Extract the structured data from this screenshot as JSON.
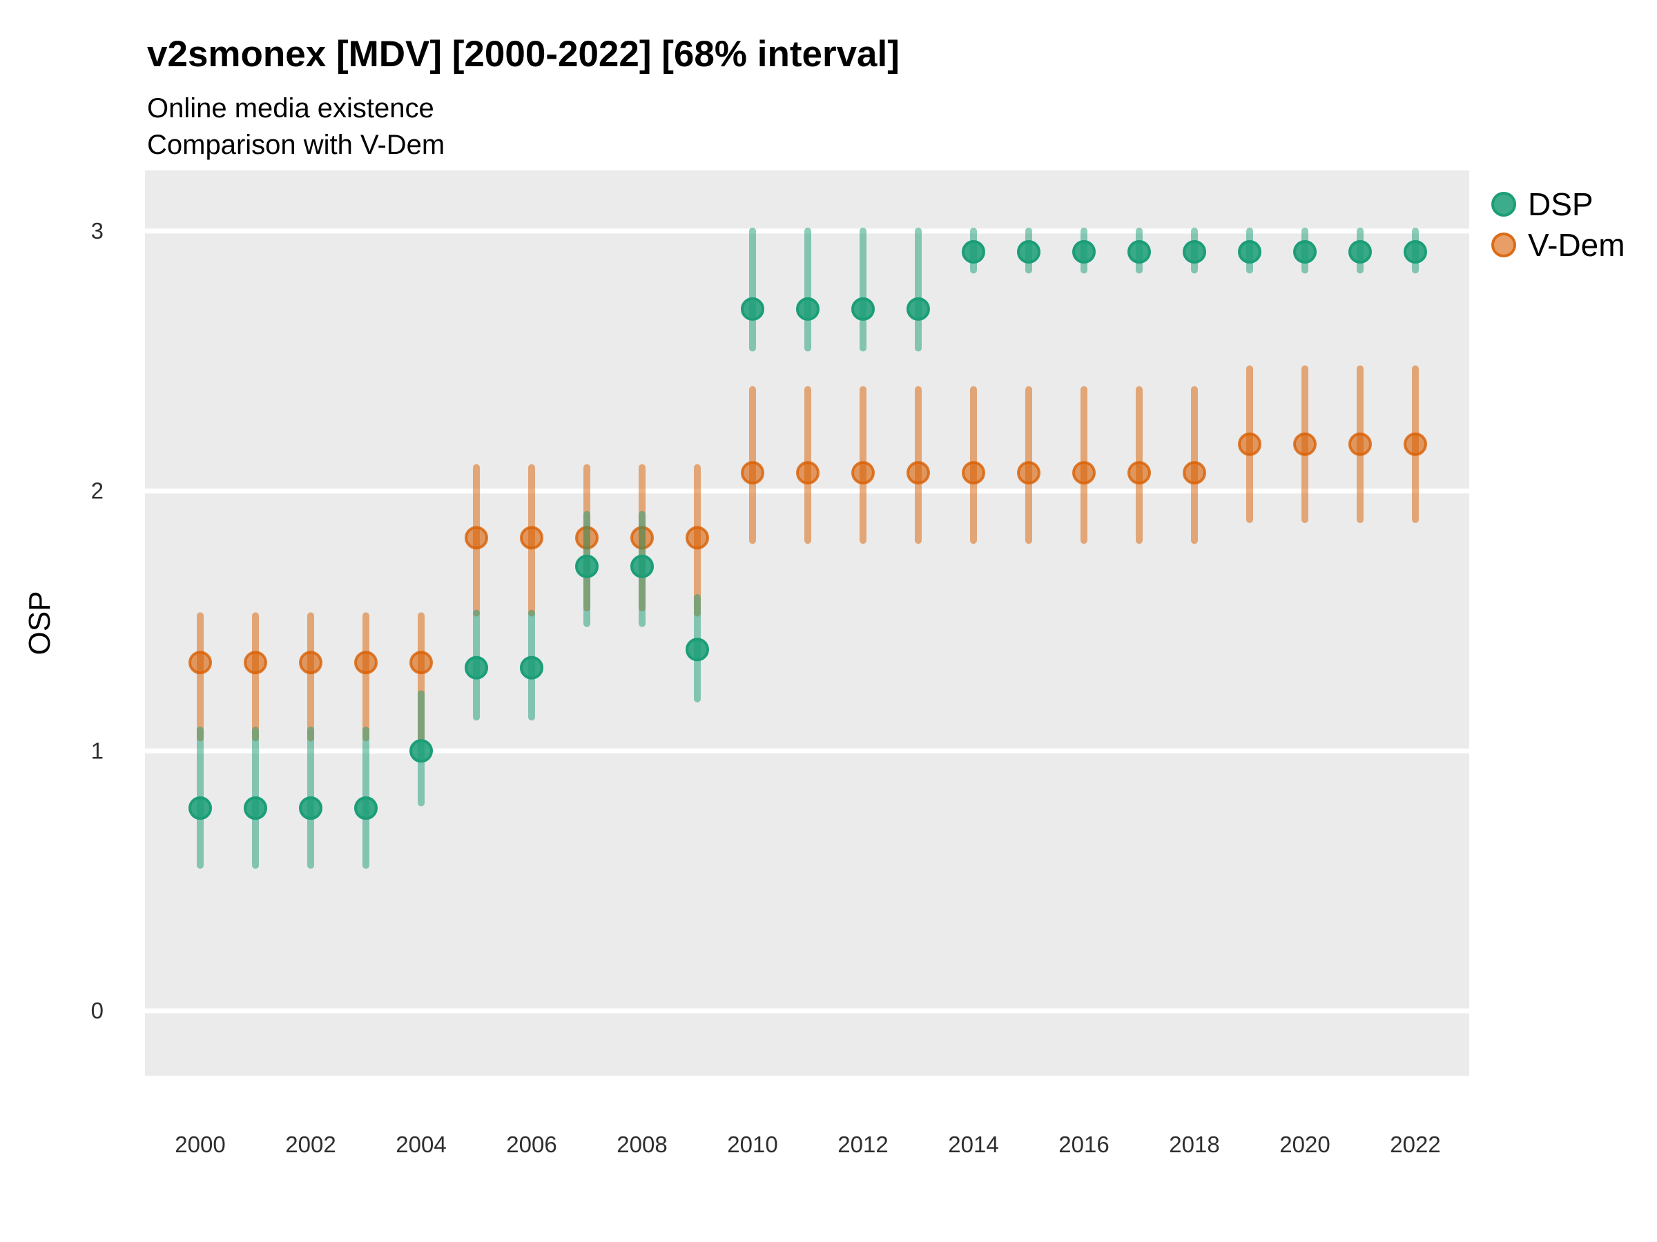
{
  "chart_data": {
    "type": "pointrange",
    "title": "v2smonex [MDV] [2000-2022] [68% interval]",
    "subtitle": [
      "Online media existence",
      "Comparison with V-Dem"
    ],
    "ylabel": "OSP",
    "xlabel": "",
    "interval_note": "68% interval",
    "legend_position": "right",
    "grid": true,
    "panel_bg": "#EBEBEB",
    "grid_color": "#FFFFFF",
    "y_ticks": [
      0,
      1,
      2,
      3
    ],
    "x_ticks": [
      2000,
      2002,
      2004,
      2006,
      2008,
      2010,
      2012,
      2014,
      2016,
      2018,
      2020,
      2022
    ],
    "ylim": [
      -0.25,
      3.23
    ],
    "xlim": [
      1999,
      2023
    ],
    "series": [
      {
        "name": "DSP",
        "color": "#1B9E77",
        "bar_color": "rgba(27,158,119,0.5)",
        "dot_fill": "rgba(27,158,119,0.85)",
        "dot_stroke": "rgba(27,158,119,1)",
        "points": [
          {
            "year": 2000,
            "mid": 0.78,
            "lo": 0.56,
            "hi": 1.08
          },
          {
            "year": 2001,
            "mid": 0.78,
            "lo": 0.56,
            "hi": 1.08
          },
          {
            "year": 2002,
            "mid": 0.78,
            "lo": 0.56,
            "hi": 1.08
          },
          {
            "year": 2003,
            "mid": 0.78,
            "lo": 0.56,
            "hi": 1.08
          },
          {
            "year": 2004,
            "mid": 1.0,
            "lo": 0.8,
            "hi": 1.22
          },
          {
            "year": 2005,
            "mid": 1.32,
            "lo": 1.13,
            "hi": 1.53
          },
          {
            "year": 2006,
            "mid": 1.32,
            "lo": 1.13,
            "hi": 1.53
          },
          {
            "year": 2007,
            "mid": 1.71,
            "lo": 1.49,
            "hi": 1.91
          },
          {
            "year": 2008,
            "mid": 1.71,
            "lo": 1.49,
            "hi": 1.91
          },
          {
            "year": 2009,
            "mid": 1.39,
            "lo": 1.2,
            "hi": 1.59
          },
          {
            "year": 2010,
            "mid": 2.7,
            "lo": 2.55,
            "hi": 3.0
          },
          {
            "year": 2011,
            "mid": 2.7,
            "lo": 2.55,
            "hi": 3.0
          },
          {
            "year": 2012,
            "mid": 2.7,
            "lo": 2.55,
            "hi": 3.0
          },
          {
            "year": 2013,
            "mid": 2.7,
            "lo": 2.55,
            "hi": 3.0
          },
          {
            "year": 2014,
            "mid": 2.92,
            "lo": 2.85,
            "hi": 3.0
          },
          {
            "year": 2015,
            "mid": 2.92,
            "lo": 2.85,
            "hi": 3.0
          },
          {
            "year": 2016,
            "mid": 2.92,
            "lo": 2.85,
            "hi": 3.0
          },
          {
            "year": 2017,
            "mid": 2.92,
            "lo": 2.85,
            "hi": 3.0
          },
          {
            "year": 2018,
            "mid": 2.92,
            "lo": 2.85,
            "hi": 3.0
          },
          {
            "year": 2019,
            "mid": 2.92,
            "lo": 2.85,
            "hi": 3.0
          },
          {
            "year": 2020,
            "mid": 2.92,
            "lo": 2.85,
            "hi": 3.0
          },
          {
            "year": 2021,
            "mid": 2.92,
            "lo": 2.85,
            "hi": 3.0
          },
          {
            "year": 2022,
            "mid": 2.92,
            "lo": 2.85,
            "hi": 3.0
          }
        ]
      },
      {
        "name": "V-Dem",
        "color": "#D95F02",
        "bar_color": "rgba(217,95,2,0.5)",
        "dot_fill": "rgba(217,95,2,0.6)",
        "dot_stroke": "rgba(217,95,2,0.8)",
        "points": [
          {
            "year": 2000,
            "mid": 1.34,
            "lo": 1.05,
            "hi": 1.52
          },
          {
            "year": 2001,
            "mid": 1.34,
            "lo": 1.05,
            "hi": 1.52
          },
          {
            "year": 2002,
            "mid": 1.34,
            "lo": 1.05,
            "hi": 1.52
          },
          {
            "year": 2003,
            "mid": 1.34,
            "lo": 1.05,
            "hi": 1.52
          },
          {
            "year": 2004,
            "mid": 1.34,
            "lo": 1.05,
            "hi": 1.52
          },
          {
            "year": 2005,
            "mid": 1.82,
            "lo": 1.53,
            "hi": 2.09
          },
          {
            "year": 2006,
            "mid": 1.82,
            "lo": 1.53,
            "hi": 2.09
          },
          {
            "year": 2007,
            "mid": 1.82,
            "lo": 1.55,
            "hi": 2.09
          },
          {
            "year": 2008,
            "mid": 1.82,
            "lo": 1.55,
            "hi": 2.09
          },
          {
            "year": 2009,
            "mid": 1.82,
            "lo": 1.53,
            "hi": 2.09
          },
          {
            "year": 2010,
            "mid": 2.07,
            "lo": 1.81,
            "hi": 2.39
          },
          {
            "year": 2011,
            "mid": 2.07,
            "lo": 1.81,
            "hi": 2.39
          },
          {
            "year": 2012,
            "mid": 2.07,
            "lo": 1.81,
            "hi": 2.39
          },
          {
            "year": 2013,
            "mid": 2.07,
            "lo": 1.81,
            "hi": 2.39
          },
          {
            "year": 2014,
            "mid": 2.07,
            "lo": 1.81,
            "hi": 2.39
          },
          {
            "year": 2015,
            "mid": 2.07,
            "lo": 1.81,
            "hi": 2.39
          },
          {
            "year": 2016,
            "mid": 2.07,
            "lo": 1.81,
            "hi": 2.39
          },
          {
            "year": 2017,
            "mid": 2.07,
            "lo": 1.81,
            "hi": 2.39
          },
          {
            "year": 2018,
            "mid": 2.07,
            "lo": 1.81,
            "hi": 2.39
          },
          {
            "year": 2019,
            "mid": 2.18,
            "lo": 1.89,
            "hi": 2.47
          },
          {
            "year": 2020,
            "mid": 2.18,
            "lo": 1.89,
            "hi": 2.47
          },
          {
            "year": 2021,
            "mid": 2.18,
            "lo": 1.89,
            "hi": 2.47
          },
          {
            "year": 2022,
            "mid": 2.18,
            "lo": 1.89,
            "hi": 2.47
          }
        ]
      }
    ]
  }
}
